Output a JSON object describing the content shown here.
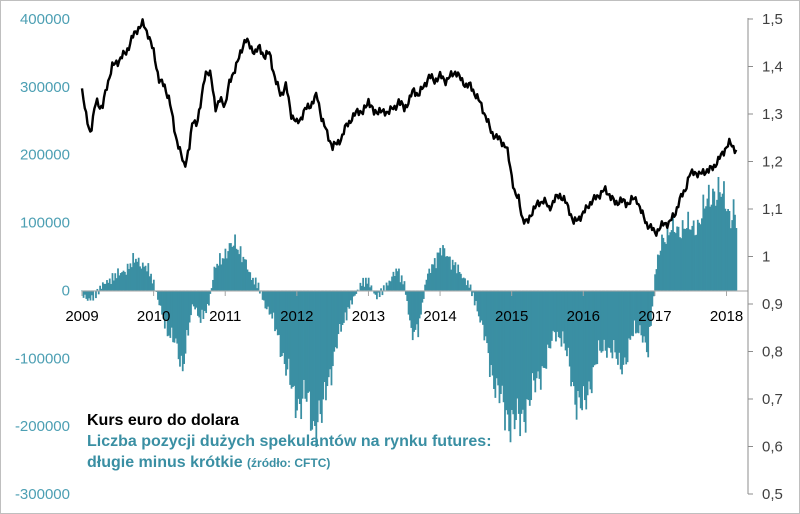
{
  "chart_data": {
    "type": "bar+line",
    "legend": {
      "line_label": "Kurs euro do dolara",
      "bars_label_1": "Liczba pozycji dużych spekulantów na rynku futures:",
      "bars_label_2": "długie minus krótkie",
      "source": "(źródło: CFTC)"
    },
    "colors": {
      "bars": "#3a8fa3",
      "line": "#000000",
      "left_axis_text": "#4c9fb3",
      "right_axis_text": "#404040"
    },
    "left_axis": {
      "ticks": [
        "400000",
        "300000",
        "200000",
        "100000",
        "0",
        "-100000",
        "-200000",
        "-300000"
      ],
      "ylim": [
        -300000,
        400000
      ]
    },
    "right_axis": {
      "ticks": [
        "1,5",
        "1,4",
        "1,3",
        "1,2",
        "1,1",
        "1",
        "0,9",
        "0,8",
        "0,7",
        "0,6",
        "0,5"
      ],
      "ylim": [
        0.5,
        1.5
      ]
    },
    "x_axis": {
      "ticks": [
        "2009",
        "2010",
        "2011",
        "2012",
        "2013",
        "2014",
        "2015",
        "2016",
        "2017",
        "2018"
      ],
      "xlim": [
        2009.0,
        2018.3
      ]
    },
    "series_line": {
      "x": [
        2009.0,
        2009.05,
        2009.12,
        2009.2,
        2009.28,
        2009.35,
        2009.42,
        2009.5,
        2009.55,
        2009.62,
        2009.7,
        2009.78,
        2009.85,
        2009.92,
        2010.0,
        2010.08,
        2010.15,
        2010.22,
        2010.3,
        2010.37,
        2010.43,
        2010.5,
        2010.55,
        2010.6,
        2010.65,
        2010.72,
        2010.8,
        2010.87,
        2010.93,
        2011.0,
        2011.05,
        2011.12,
        2011.2,
        2011.28,
        2011.35,
        2011.42,
        2011.48,
        2011.55,
        2011.62,
        2011.7,
        2011.78,
        2011.85,
        2011.92,
        2012.0,
        2012.05,
        2012.12,
        2012.2,
        2012.28,
        2012.35,
        2012.42,
        2012.5,
        2012.57,
        2012.63,
        2012.7,
        2012.78,
        2012.85,
        2012.92,
        2013.0,
        2013.08,
        2013.15,
        2013.22,
        2013.3,
        2013.37,
        2013.42,
        2013.5,
        2013.57,
        2013.63,
        2013.7,
        2013.78,
        2013.85,
        2013.92,
        2014.0,
        2014.08,
        2014.15,
        2014.22,
        2014.3,
        2014.37,
        2014.42,
        2014.5,
        2014.57,
        2014.65,
        2014.72,
        2014.8,
        2014.87,
        2014.93,
        2015.0,
        2015.05,
        2015.1,
        2015.15,
        2015.22,
        2015.3,
        2015.37,
        2015.45,
        2015.52,
        2015.6,
        2015.67,
        2015.73,
        2015.8,
        2015.87,
        2015.93,
        2016.0,
        2016.08,
        2016.15,
        2016.22,
        2016.3,
        2016.37,
        2016.45,
        2016.52,
        2016.6,
        2016.68,
        2016.75,
        2016.82,
        2016.88,
        2016.95,
        2017.0,
        2017.07,
        2017.13,
        2017.2,
        2017.28,
        2017.35,
        2017.42,
        2017.48,
        2017.55,
        2017.62,
        2017.68,
        2017.75,
        2017.82,
        2017.88,
        2017.95,
        2018.0,
        2018.05,
        2018.1,
        2018.15
      ],
      "y": [
        1.35,
        1.3,
        1.26,
        1.33,
        1.31,
        1.36,
        1.4,
        1.41,
        1.42,
        1.43,
        1.46,
        1.48,
        1.49,
        1.47,
        1.43,
        1.37,
        1.36,
        1.33,
        1.26,
        1.22,
        1.19,
        1.23,
        1.29,
        1.28,
        1.31,
        1.39,
        1.38,
        1.31,
        1.33,
        1.32,
        1.36,
        1.39,
        1.42,
        1.46,
        1.44,
        1.43,
        1.44,
        1.42,
        1.43,
        1.37,
        1.34,
        1.36,
        1.3,
        1.28,
        1.29,
        1.31,
        1.32,
        1.34,
        1.29,
        1.26,
        1.23,
        1.24,
        1.25,
        1.28,
        1.29,
        1.31,
        1.3,
        1.33,
        1.3,
        1.31,
        1.3,
        1.31,
        1.31,
        1.33,
        1.31,
        1.33,
        1.35,
        1.34,
        1.36,
        1.38,
        1.37,
        1.38,
        1.37,
        1.38,
        1.39,
        1.37,
        1.36,
        1.36,
        1.34,
        1.32,
        1.29,
        1.26,
        1.25,
        1.24,
        1.23,
        1.17,
        1.13,
        1.12,
        1.08,
        1.07,
        1.1,
        1.11,
        1.12,
        1.1,
        1.12,
        1.13,
        1.12,
        1.1,
        1.07,
        1.08,
        1.09,
        1.11,
        1.12,
        1.13,
        1.14,
        1.13,
        1.11,
        1.12,
        1.11,
        1.12,
        1.12,
        1.09,
        1.07,
        1.06,
        1.05,
        1.06,
        1.07,
        1.07,
        1.09,
        1.12,
        1.14,
        1.17,
        1.18,
        1.17,
        1.18,
        1.18,
        1.19,
        1.2,
        1.22,
        1.23,
        1.24,
        1.23,
        1.22
      ]
    },
    "series_bars": {
      "anchors_x": [
        2009.0,
        2009.1,
        2009.2,
        2009.3,
        2009.45,
        2009.6,
        2009.75,
        2009.9,
        2010.0,
        2010.1,
        2010.2,
        2010.3,
        2010.4,
        2010.45,
        2010.55,
        2010.65,
        2010.75,
        2010.85,
        2010.95,
        2011.05,
        2011.15,
        2011.25,
        2011.35,
        2011.45,
        2011.55,
        2011.65,
        2011.75,
        2011.85,
        2011.95,
        2012.05,
        2012.15,
        2012.25,
        2012.35,
        2012.42,
        2012.5,
        2012.6,
        2012.7,
        2012.8,
        2012.9,
        2013.0,
        2013.1,
        2013.2,
        2013.3,
        2013.4,
        2013.5,
        2013.6,
        2013.7,
        2013.8,
        2013.9,
        2014.0,
        2014.1,
        2014.2,
        2014.3,
        2014.4,
        2014.5,
        2014.6,
        2014.7,
        2014.8,
        2014.9,
        2015.0,
        2015.1,
        2015.2,
        2015.3,
        2015.4,
        2015.5,
        2015.6,
        2015.7,
        2015.8,
        2015.9,
        2016.0,
        2016.1,
        2016.2,
        2016.3,
        2016.4,
        2016.5,
        2016.6,
        2016.7,
        2016.8,
        2016.9,
        2017.0,
        2017.1,
        2017.2,
        2017.3,
        2017.4,
        2017.5,
        2017.6,
        2017.7,
        2017.8,
        2017.9,
        2018.0,
        2018.05,
        2018.1,
        2018.15
      ],
      "anchors_y": [
        -5000,
        -15000,
        -5000,
        10000,
        20000,
        30000,
        45000,
        35000,
        10000,
        -30000,
        -60000,
        -80000,
        -110000,
        -80000,
        -20000,
        -40000,
        -30000,
        30000,
        50000,
        60000,
        70000,
        50000,
        20000,
        10000,
        -20000,
        -40000,
        -70000,
        -120000,
        -150000,
        -170000,
        -160000,
        -200000,
        -190000,
        -130000,
        -110000,
        -60000,
        -30000,
        -10000,
        10000,
        15000,
        -10000,
        0,
        15000,
        30000,
        10000,
        -60000,
        -60000,
        15000,
        40000,
        60000,
        50000,
        40000,
        20000,
        10000,
        -20000,
        -60000,
        -110000,
        -150000,
        -180000,
        -190000,
        -200000,
        -170000,
        -150000,
        -120000,
        -100000,
        -60000,
        -70000,
        -110000,
        -160000,
        -180000,
        -130000,
        -100000,
        -80000,
        -90000,
        -110000,
        -100000,
        -60000,
        -55000,
        -100000,
        20000,
        80000,
        85000,
        90000,
        95000,
        90000,
        100000,
        120000,
        150000,
        140000,
        130000,
        110000,
        120000,
        80000
      ]
    }
  }
}
